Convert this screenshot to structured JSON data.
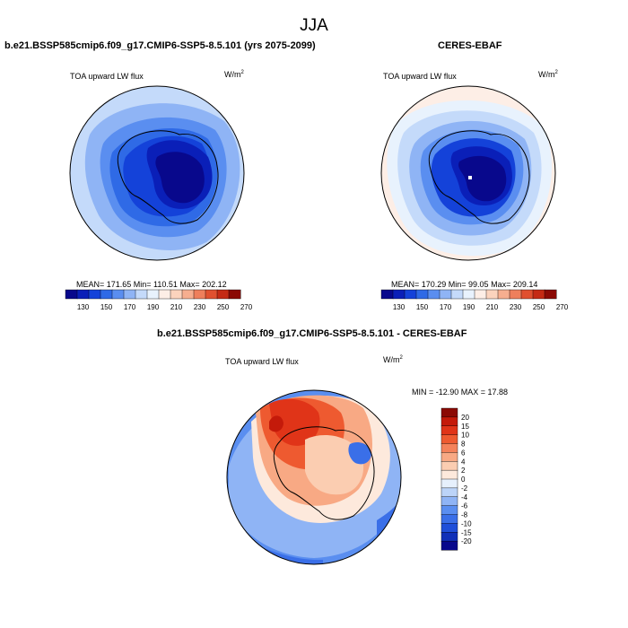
{
  "page": {
    "season_title": "JJA"
  },
  "panels": {
    "model": {
      "title": "b.e21.BSSP585cmip6.f09_g17.CMIP6-SSP5-8.5.101 (yrs 2075-2099)",
      "variable": "TOA upward LW flux",
      "units_base": "W/m",
      "units_exp": "2",
      "stats": "MEAN= 171.65  Min= 110.51  Max= 202.12"
    },
    "obs": {
      "title": "CERES-EBAF",
      "variable": "TOA upward LW flux",
      "units_base": "W/m",
      "units_exp": "2",
      "stats": "MEAN= 170.29  Min=  99.05  Max= 209.14"
    },
    "diff": {
      "title": "b.e21.BSSP585cmip6.f09_g17.CMIP6-SSP5-8.5.101 - CERES-EBAF",
      "variable": "TOA upward LW flux",
      "units_base": "W/m",
      "units_exp": "2",
      "stats": "MIN = -12.90 MAX =  17.88"
    }
  },
  "colorbars": {
    "absolute": {
      "labels": [
        "130",
        "150",
        "170",
        "190",
        "210",
        "230",
        "250",
        "270"
      ],
      "colors": [
        "#08088c",
        "#0a1fb8",
        "#1442d9",
        "#2f6ae6",
        "#5a8ef0",
        "#8fb4f5",
        "#c4dafa",
        "#e8f2fd",
        "#fdeee6",
        "#fbd3bd",
        "#f6ae8f",
        "#ee7f5c",
        "#e0502f",
        "#c42a14",
        "#8b0a05"
      ]
    },
    "difference": {
      "labels": [
        "20",
        "15",
        "10",
        "8",
        "6",
        "4",
        "2",
        "0",
        "-2",
        "-4",
        "-6",
        "-8",
        "-10",
        "-15",
        "-20"
      ],
      "colors": [
        "#8b0a05",
        "#c41a0a",
        "#e03418",
        "#ee5a30",
        "#f4825a",
        "#f8a984",
        "#fbcdb1",
        "#fde9dc",
        "#e6f0fc",
        "#bcd4f8",
        "#8fb4f5",
        "#5a8ef0",
        "#3a6fe8",
        "#1f4fd9",
        "#1030b8",
        "#08088c"
      ]
    }
  }
}
